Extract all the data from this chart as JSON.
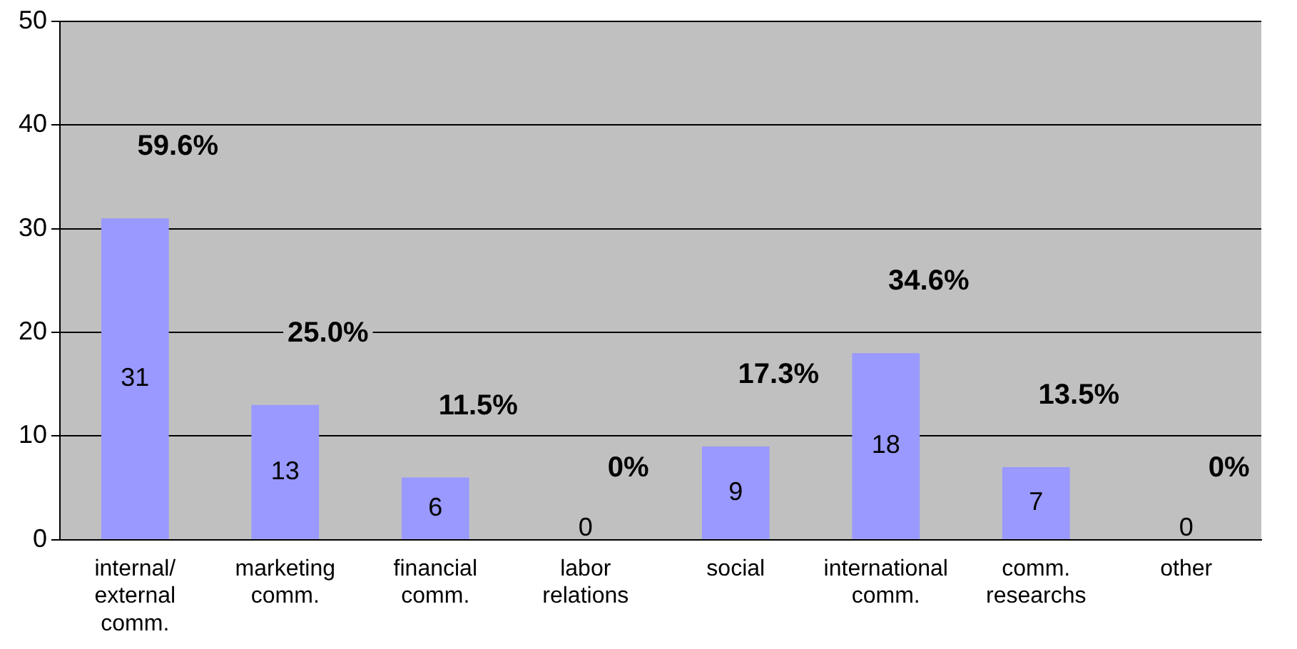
{
  "chart_data": {
    "type": "bar",
    "categories": [
      "internal/ external comm.",
      "marketing comm.",
      "financial comm.",
      "labor relations",
      "social",
      "international comm.",
      "comm. researchs",
      "other"
    ],
    "values": [
      31,
      13,
      6,
      0,
      9,
      18,
      7,
      0
    ],
    "color": "#9999ff",
    "ylim": [
      0,
      50
    ],
    "yticks": [
      0,
      10,
      20,
      30,
      40,
      50
    ],
    "grid": "y",
    "legend": false,
    "data_labels": true,
    "annotations": [
      "59.6%",
      "25.0%",
      "11.5%",
      "0%",
      "17.3%",
      "34.6%",
      "13.5%",
      "0%"
    ]
  }
}
